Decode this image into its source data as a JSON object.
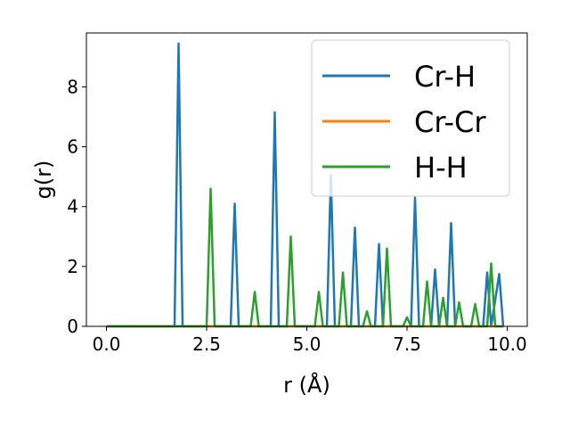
{
  "chart_data": {
    "type": "line",
    "xlabel": "r (Å)",
    "ylabel": "g(r)",
    "xlim": [
      -0.5,
      10.5
    ],
    "ylim": [
      0,
      9.8
    ],
    "xticks": [
      0.0,
      2.5,
      5.0,
      7.5,
      10.0
    ],
    "xtick_labels": [
      "0.0",
      "2.5",
      "5.0",
      "7.5",
      "10.0"
    ],
    "yticks": [
      0,
      2,
      4,
      6,
      8
    ],
    "ytick_labels": [
      "0",
      "2",
      "4",
      "6",
      "8"
    ],
    "grid": false,
    "legend_position": "upper right",
    "series": [
      {
        "name": "Cr-H",
        "color": "#1f77b4",
        "points": [
          [
            0,
            0
          ],
          [
            1.7,
            0
          ],
          [
            1.8,
            9.45
          ],
          [
            1.9,
            0
          ],
          [
            3.1,
            0
          ],
          [
            3.2,
            4.1
          ],
          [
            3.3,
            0
          ],
          [
            4.1,
            0
          ],
          [
            4.2,
            7.15
          ],
          [
            4.3,
            0
          ],
          [
            5.5,
            0
          ],
          [
            5.6,
            5.05
          ],
          [
            5.7,
            0
          ],
          [
            6.1,
            0
          ],
          [
            6.2,
            3.3
          ],
          [
            6.3,
            0
          ],
          [
            6.7,
            0
          ],
          [
            6.8,
            2.75
          ],
          [
            6.9,
            0
          ],
          [
            7.6,
            0
          ],
          [
            7.7,
            4.3
          ],
          [
            7.8,
            0
          ],
          [
            8.1,
            0
          ],
          [
            8.2,
            1.9
          ],
          [
            8.3,
            0
          ],
          [
            8.5,
            0
          ],
          [
            8.6,
            3.45
          ],
          [
            8.7,
            0
          ],
          [
            9.4,
            0
          ],
          [
            9.5,
            1.8
          ],
          [
            9.6,
            0
          ],
          [
            9.8,
            1.75
          ],
          [
            9.9,
            0
          ]
        ]
      },
      {
        "name": "Cr-Cr",
        "color": "#ff7f0e",
        "points": [
          [
            0,
            0
          ],
          [
            9.9,
            0
          ]
        ]
      },
      {
        "name": "H-H",
        "color": "#2ca02c",
        "points": [
          [
            0,
            0
          ],
          [
            2.5,
            0
          ],
          [
            2.6,
            4.6
          ],
          [
            2.7,
            0
          ],
          [
            3.6,
            0
          ],
          [
            3.7,
            1.15
          ],
          [
            3.8,
            0
          ],
          [
            4.5,
            0
          ],
          [
            4.6,
            3.0
          ],
          [
            4.7,
            0
          ],
          [
            5.2,
            0
          ],
          [
            5.3,
            1.15
          ],
          [
            5.4,
            0
          ],
          [
            5.8,
            0
          ],
          [
            5.9,
            1.8
          ],
          [
            6.0,
            0
          ],
          [
            6.4,
            0
          ],
          [
            6.5,
            0.5
          ],
          [
            6.6,
            0
          ],
          [
            6.9,
            0
          ],
          [
            7.0,
            2.6
          ],
          [
            7.1,
            0
          ],
          [
            7.4,
            0
          ],
          [
            7.5,
            0.3
          ],
          [
            7.6,
            0
          ],
          [
            7.9,
            0
          ],
          [
            8.0,
            1.5
          ],
          [
            8.1,
            0
          ],
          [
            8.3,
            0
          ],
          [
            8.4,
            0.95
          ],
          [
            8.5,
            0
          ],
          [
            8.7,
            0
          ],
          [
            8.8,
            0.8
          ],
          [
            8.9,
            0
          ],
          [
            9.1,
            0
          ],
          [
            9.2,
            0.75
          ],
          [
            9.3,
            0
          ],
          [
            9.5,
            0
          ],
          [
            9.6,
            2.1
          ],
          [
            9.7,
            0
          ],
          [
            9.9,
            0
          ]
        ]
      }
    ]
  }
}
